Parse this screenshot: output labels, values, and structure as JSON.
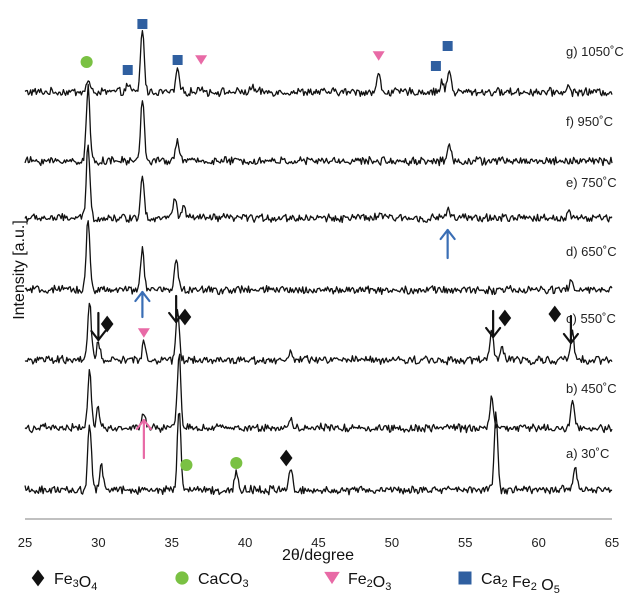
{
  "colors": {
    "fe3o4": "#111111",
    "caco3": "#7ac143",
    "fe2o3": "#e86aa6",
    "ca2fe2o5": "#2f5fa0",
    "arrow_black": "#111111",
    "arrow_blue": "#3a6eb5",
    "arrow_pink": "#e86aa6",
    "trace": "#111111",
    "axis": "#9a9a9a"
  },
  "chart_data": {
    "type": "line",
    "title": "",
    "xlabel": "2θ/degree",
    "ylabel": "Intensity [a.u.]",
    "xlim": [
      25,
      65
    ],
    "x_ticks": [
      25,
      30,
      35,
      40,
      45,
      50,
      55,
      60,
      65
    ],
    "grid": false,
    "y_ticks_shown": false,
    "legend_position": "bottom",
    "series": [
      {
        "name": "g) 1050˚C",
        "peaks": [
          {
            "x": 29.3,
            "height": 0.14
          },
          {
            "x": 32.0,
            "height": 0.09
          },
          {
            "x": 33.0,
            "height": 0.8
          },
          {
            "x": 35.4,
            "height": 0.28
          },
          {
            "x": 37.0,
            "height": 0.07
          },
          {
            "x": 40.5,
            "height": 0.06
          },
          {
            "x": 49.1,
            "height": 0.22
          },
          {
            "x": 53.4,
            "height": 0.12
          },
          {
            "x": 53.9,
            "height": 0.28
          },
          {
            "x": 62.0,
            "height": 0.06
          }
        ]
      },
      {
        "name": "f) 950˚C",
        "peaks": [
          {
            "x": 29.3,
            "height": 0.92
          },
          {
            "x": 33.0,
            "height": 0.8
          },
          {
            "x": 35.4,
            "height": 0.28
          },
          {
            "x": 53.9,
            "height": 0.2
          }
        ]
      },
      {
        "name": "e) 750˚C",
        "peaks": [
          {
            "x": 29.3,
            "height": 0.92
          },
          {
            "x": 33.0,
            "height": 0.55
          },
          {
            "x": 35.2,
            "height": 0.26
          },
          {
            "x": 35.8,
            "height": 0.15
          },
          {
            "x": 49.2,
            "height": 0.07
          },
          {
            "x": 53.8,
            "height": 0.12
          },
          {
            "x": 62.1,
            "height": 0.08
          }
        ]
      },
      {
        "name": "d) 650˚C",
        "peaks": [
          {
            "x": 29.3,
            "height": 0.92
          },
          {
            "x": 33.0,
            "height": 0.5
          },
          {
            "x": 35.3,
            "height": 0.42
          },
          {
            "x": 62.2,
            "height": 0.12
          }
        ]
      },
      {
        "name": "c) 550˚C",
        "peaks": [
          {
            "x": 29.4,
            "height": 0.7
          },
          {
            "x": 30.0,
            "height": 0.22
          },
          {
            "x": 33.1,
            "height": 0.22
          },
          {
            "x": 35.4,
            "height": 0.6
          },
          {
            "x": 43.1,
            "height": 0.09
          },
          {
            "x": 56.8,
            "height": 0.36
          },
          {
            "x": 57.5,
            "height": 0.16
          },
          {
            "x": 62.3,
            "height": 0.33
          }
        ]
      },
      {
        "name": "b) 450˚C",
        "peaks": [
          {
            "x": 29.4,
            "height": 0.72
          },
          {
            "x": 30.0,
            "height": 0.24
          },
          {
            "x": 33.1,
            "height": 0.18
          },
          {
            "x": 35.5,
            "height": 0.92
          },
          {
            "x": 43.1,
            "height": 0.14
          },
          {
            "x": 56.8,
            "height": 0.4
          },
          {
            "x": 62.3,
            "height": 0.36
          }
        ]
      },
      {
        "name": "a) 30˚C",
        "peaks": [
          {
            "x": 29.4,
            "height": 0.85
          },
          {
            "x": 30.2,
            "height": 0.32
          },
          {
            "x": 35.5,
            "height": 1.0
          },
          {
            "x": 39.4,
            "height": 0.22
          },
          {
            "x": 43.1,
            "height": 0.28
          },
          {
            "x": 57.1,
            "height": 0.95
          },
          {
            "x": 62.5,
            "height": 0.27
          }
        ]
      }
    ],
    "annotations": [
      {
        "kind": "marker",
        "phase": "CaCO3",
        "shape": "circle",
        "x": 29.2,
        "series": "g) 1050˚C"
      },
      {
        "kind": "marker",
        "phase": "Ca2 Fe2 O5",
        "shape": "square",
        "x": 32.0,
        "series": "g) 1050˚C"
      },
      {
        "kind": "marker",
        "phase": "Ca2 Fe2 O5",
        "shape": "square",
        "x": 33.0,
        "series": "g) 1050˚C"
      },
      {
        "kind": "marker",
        "phase": "Ca2 Fe2 O5",
        "shape": "square",
        "x": 35.4,
        "series": "g) 1050˚C"
      },
      {
        "kind": "marker",
        "phase": "Fe2O3",
        "shape": "triangle",
        "x": 37.0,
        "series": "g) 1050˚C"
      },
      {
        "kind": "marker",
        "phase": "Fe2O3",
        "shape": "triangle",
        "x": 49.1,
        "series": "g) 1050˚C"
      },
      {
        "kind": "marker",
        "phase": "Ca2 Fe2 O5",
        "shape": "square",
        "x": 53.0,
        "series": "g) 1050˚C"
      },
      {
        "kind": "marker",
        "phase": "Ca2 Fe2 O5",
        "shape": "square",
        "x": 53.8,
        "series": "g) 1050˚C"
      },
      {
        "kind": "arrow",
        "color": "blue",
        "direction": "up",
        "x": 53.8,
        "series": "e) 750˚C"
      },
      {
        "kind": "arrow",
        "color": "blue",
        "direction": "up",
        "x": 33.0,
        "series": "d) 650˚C"
      },
      {
        "kind": "arrow",
        "color": "black",
        "direction": "down",
        "x": 30.0,
        "series": "c) 550˚C"
      },
      {
        "kind": "marker",
        "phase": "Fe3O4",
        "shape": "diamond",
        "x": 30.6,
        "series": "c) 550˚C"
      },
      {
        "kind": "marker",
        "phase": "Fe2O3",
        "shape": "triangle",
        "x": 33.1,
        "series": "c) 550˚C"
      },
      {
        "kind": "arrow",
        "color": "black",
        "direction": "down",
        "x": 35.3,
        "series": "c) 550˚C"
      },
      {
        "kind": "marker",
        "phase": "Fe3O4",
        "shape": "diamond",
        "x": 35.9,
        "series": "c) 550˚C"
      },
      {
        "kind": "arrow",
        "color": "black",
        "direction": "down",
        "x": 56.9,
        "series": "c) 550˚C"
      },
      {
        "kind": "marker",
        "phase": "Fe3O4",
        "shape": "diamond",
        "x": 57.7,
        "series": "c) 550˚C"
      },
      {
        "kind": "marker",
        "phase": "Fe3O4",
        "shape": "diamond",
        "x": 61.1,
        "series": "c) 550˚C"
      },
      {
        "kind": "arrow",
        "color": "black",
        "direction": "down",
        "x": 62.2,
        "series": "c) 550˚C"
      },
      {
        "kind": "arrow",
        "color": "pink",
        "direction": "up",
        "x": 33.1,
        "series": "b) 450˚C"
      },
      {
        "kind": "marker",
        "phase": "CaCO3",
        "shape": "circle",
        "x": 36.0,
        "series": "a) 30˚C"
      },
      {
        "kind": "marker",
        "phase": "CaCO3",
        "shape": "circle",
        "x": 39.4,
        "series": "a) 30˚C"
      },
      {
        "kind": "marker",
        "phase": "Fe3O4",
        "shape": "diamond",
        "x": 42.8,
        "series": "a) 30˚C"
      }
    ]
  },
  "legend": [
    {
      "shape": "diamond",
      "label": "Fe3O4",
      "formula": "Fe",
      "sub": "3",
      "rest": "O",
      "sub2": "4"
    },
    {
      "shape": "circle",
      "label": "CaCO3",
      "formula": "CaCO",
      "sub": "3",
      "rest": "",
      "sub2": ""
    },
    {
      "shape": "triangle",
      "label": "Fe2O3",
      "formula": "Fe",
      "sub": "2",
      "rest": "O",
      "sub2": "3"
    },
    {
      "shape": "square",
      "label": "Ca2 Fe2 O5",
      "formula": "Ca",
      "sub": "2",
      "rest": " Fe",
      "sub2": "2",
      "rest2": " O",
      "sub3": "5"
    }
  ]
}
